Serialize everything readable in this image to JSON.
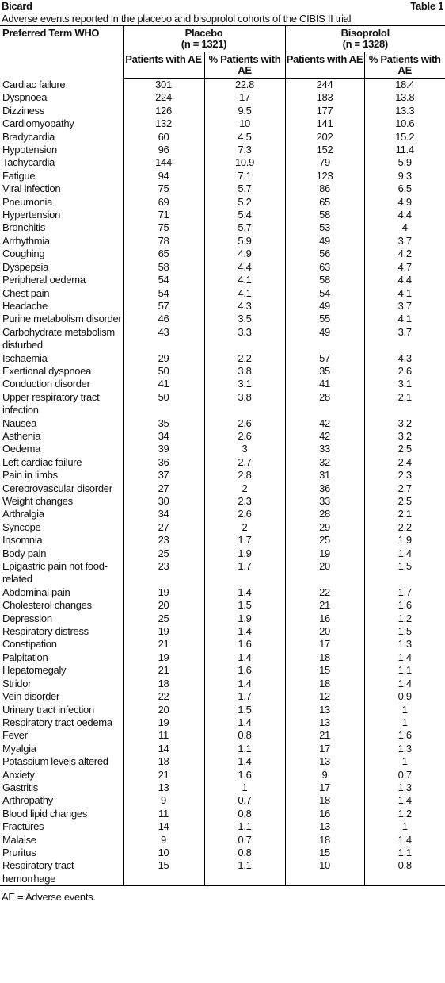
{
  "header": {
    "journal": "Bicard",
    "label": "Table 1",
    "caption": "Adverse events reported in the placebo and bisoprolol cohorts of the CIBIS II trial"
  },
  "table": {
    "term_header": "Preferred Term WHO",
    "groups": [
      {
        "name": "Placebo",
        "n": "(n = 1321)"
      },
      {
        "name": "Bisoprolol",
        "n": "(n = 1328)"
      }
    ],
    "subheaders": [
      "Patients with AE",
      "% Patients with AE",
      "Patients with AE",
      "% Patients with AE"
    ],
    "rows": [
      [
        "Cardiac failure",
        301,
        22.8,
        244,
        18.4
      ],
      [
        "Dyspnoea",
        224,
        17,
        183,
        13.8
      ],
      [
        "Dizziness",
        126,
        9.5,
        177,
        13.3
      ],
      [
        "Cardiomyopathy",
        132,
        10,
        141,
        10.6
      ],
      [
        "Bradycardia",
        60,
        4.5,
        202,
        15.2
      ],
      [
        "Hypotension",
        96,
        7.3,
        152,
        11.4
      ],
      [
        "Tachycardia",
        144,
        10.9,
        79,
        5.9
      ],
      [
        "Fatigue",
        94,
        7.1,
        123,
        9.3
      ],
      [
        "Viral infection",
        75,
        5.7,
        86,
        6.5
      ],
      [
        "Pneumonia",
        69,
        5.2,
        65,
        4.9
      ],
      [
        "Hypertension",
        71,
        5.4,
        58,
        4.4
      ],
      [
        "Bronchitis",
        75,
        5.7,
        53,
        4
      ],
      [
        "Arrhythmia",
        78,
        5.9,
        49,
        3.7
      ],
      [
        "Coughing",
        65,
        4.9,
        56,
        4.2
      ],
      [
        "Dyspepsia",
        58,
        4.4,
        63,
        4.7
      ],
      [
        "Peripheral oedema",
        54,
        4.1,
        58,
        4.4
      ],
      [
        "Chest pain",
        54,
        4.1,
        54,
        4.1
      ],
      [
        "Headache",
        57,
        4.3,
        49,
        3.7
      ],
      [
        "Purine metabolism disorder",
        46,
        3.5,
        55,
        4.1
      ],
      [
        "Carbohydrate metabolism disturbed",
        43,
        3.3,
        49,
        3.7
      ],
      [
        "Ischaemia",
        29,
        2.2,
        57,
        4.3
      ],
      [
        "Exertional dyspnoea",
        50,
        3.8,
        35,
        2.6
      ],
      [
        "Conduction disorder",
        41,
        3.1,
        41,
        3.1
      ],
      [
        "Upper respiratory tract infection",
        50,
        3.8,
        28,
        2.1
      ],
      [
        "Nausea",
        35,
        2.6,
        42,
        3.2
      ],
      [
        "Asthenia",
        34,
        2.6,
        42,
        3.2
      ],
      [
        "Oedema",
        39,
        3,
        33,
        2.5
      ],
      [
        "Left cardiac failure",
        36,
        2.7,
        32,
        2.4
      ],
      [
        "Pain in limbs",
        37,
        2.8,
        31,
        2.3
      ],
      [
        "Cerebrovascular disorder",
        27,
        2,
        36,
        2.7
      ],
      [
        "Weight changes",
        30,
        2.3,
        33,
        2.5
      ],
      [
        "Arthralgia",
        34,
        2.6,
        28,
        2.1
      ],
      [
        "Syncope",
        27,
        2,
        29,
        2.2
      ],
      [
        "Insomnia",
        23,
        1.7,
        25,
        1.9
      ],
      [
        "Body pain",
        25,
        1.9,
        19,
        1.4
      ],
      [
        "Epigastric pain not food-related",
        23,
        1.7,
        20,
        1.5
      ],
      [
        "Abdominal pain",
        19,
        1.4,
        22,
        1.7
      ],
      [
        "Cholesterol changes",
        20,
        1.5,
        21,
        1.6
      ],
      [
        "Depression",
        25,
        1.9,
        16,
        1.2
      ],
      [
        "Respiratory distress",
        19,
        1.4,
        20,
        1.5
      ],
      [
        "Constipation",
        21,
        1.6,
        17,
        1.3
      ],
      [
        "Palpitation",
        19,
        1.4,
        18,
        1.4
      ],
      [
        "Hepatomegaly",
        21,
        1.6,
        15,
        1.1
      ],
      [
        "Stridor",
        18,
        1.4,
        18,
        1.4
      ],
      [
        "Vein disorder",
        22,
        1.7,
        12,
        0.9
      ],
      [
        "Urinary tract infection",
        20,
        1.5,
        13,
        1
      ],
      [
        "Respiratory tract oedema",
        19,
        1.4,
        13,
        1
      ],
      [
        "Fever",
        11,
        0.8,
        21,
        1.6
      ],
      [
        "Myalgia",
        14,
        1.1,
        17,
        1.3
      ],
      [
        "Potassium levels altered",
        18,
        1.4,
        13,
        1
      ],
      [
        "Anxiety",
        21,
        1.6,
        9,
        0.7
      ],
      [
        "Gastritis",
        13,
        1,
        17,
        1.3
      ],
      [
        "Arthropathy",
        9,
        0.7,
        18,
        1.4
      ],
      [
        "Blood lipid changes",
        11,
        0.8,
        16,
        1.2
      ],
      [
        "Fractures",
        14,
        1.1,
        13,
        1
      ],
      [
        "Malaise",
        9,
        0.7,
        18,
        1.4
      ],
      [
        "Pruritus",
        10,
        0.8,
        15,
        1.1
      ],
      [
        "Respiratory tract hemorrhage",
        15,
        1.1,
        10,
        0.8
      ]
    ]
  },
  "footnote": "AE = Adverse events."
}
